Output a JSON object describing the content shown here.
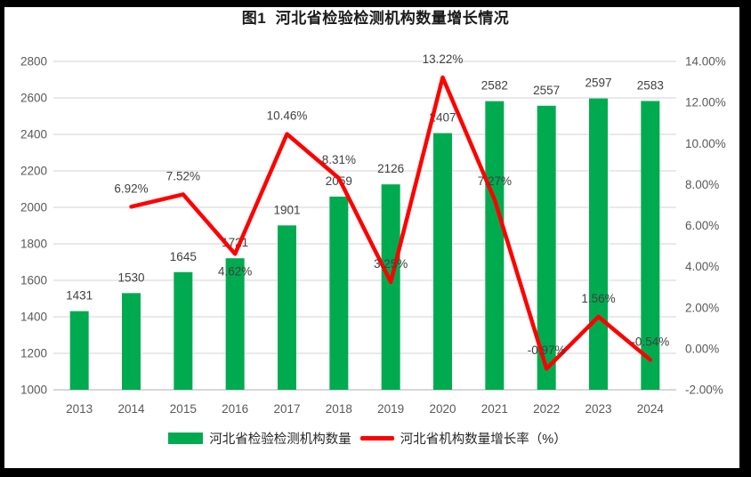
{
  "chart_data": {
    "type": "bar",
    "title": "图1  河北省检验检测机构数量增长情况",
    "categories": [
      "2013",
      "2014",
      "2015",
      "2016",
      "2017",
      "2018",
      "2019",
      "2020",
      "2021",
      "2022",
      "2023",
      "2024"
    ],
    "series": [
      {
        "name": "河北省检验检测机构数量",
        "type": "bar",
        "axis": "left",
        "color": "#00AB50",
        "values": [
          1431,
          1530,
          1645,
          1721,
          1901,
          2059,
          2126,
          2407,
          2582,
          2557,
          2597,
          2583
        ],
        "labels": [
          "1431",
          "1530",
          "1645",
          "1721",
          "1901",
          "2059",
          "2126",
          "2407",
          "2582",
          "2557",
          "2597",
          "2583"
        ]
      },
      {
        "name": "河北省机构数量增长率（%）",
        "type": "line",
        "axis": "right",
        "color": "#FF0000",
        "values": [
          null,
          6.92,
          7.52,
          4.62,
          10.46,
          8.31,
          3.25,
          13.22,
          7.27,
          -0.97,
          1.56,
          -0.54
        ],
        "labels": [
          "",
          "6.92%",
          "7.52%",
          "4.62%",
          "10.46%",
          "8.31%",
          "3.25%",
          "13.22%",
          "7.27%",
          "-0.97%",
          "1.56%",
          "-0.54%"
        ],
        "label_positions": [
          "",
          "above",
          "above",
          "below",
          "above",
          "above",
          "above",
          "above",
          "above",
          "above",
          "above",
          "above"
        ]
      }
    ],
    "left_axis": {
      "min": 1000,
      "max": 2800,
      "step": 200,
      "tick_labels": [
        "1000",
        "1200",
        "1400",
        "1600",
        "1800",
        "2000",
        "2200",
        "2400",
        "2600",
        "2800"
      ]
    },
    "right_axis": {
      "min": -2,
      "max": 14,
      "step": 2,
      "tick_labels": [
        "-2.00%",
        "0.00%",
        "2.00%",
        "4.00%",
        "6.00%",
        "8.00%",
        "10.00%",
        "12.00%",
        "14.00%"
      ]
    },
    "grid": true,
    "legend_position": "bottom",
    "colors": {
      "tick_text": "#595959",
      "data_label_text": "#404040",
      "gridline": "#DCDCDC",
      "axis_line": "#BFBFBF",
      "frame": "#000000",
      "background": "#FFFFFF"
    }
  }
}
